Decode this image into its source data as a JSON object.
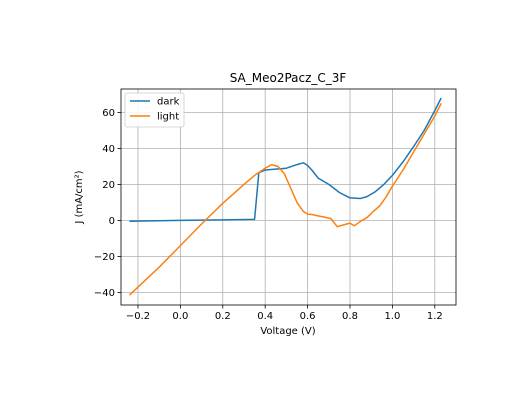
{
  "chart_data": {
    "type": "line",
    "title": "SA_Meo2Pacz_C_3F",
    "xlabel": "Voltage (V)",
    "ylabel": "J (mA/cm²)",
    "xlim": [
      -0.28,
      1.3
    ],
    "ylim": [
      -47,
      73
    ],
    "xticks": [
      -0.2,
      0.0,
      0.2,
      0.4,
      0.6,
      0.8,
      1.0,
      1.2
    ],
    "xtick_labels": [
      "−0.2",
      "0.0",
      "0.2",
      "0.4",
      "0.6",
      "0.8",
      "1.0",
      "1.2"
    ],
    "yticks": [
      -40,
      -20,
      0,
      20,
      40,
      60
    ],
    "ytick_labels": [
      "−40",
      "−20",
      "0",
      "20",
      "40",
      "60"
    ],
    "grid": true,
    "legend": "top-left",
    "series": [
      {
        "name": "dark",
        "color": "#1f77b4",
        "x": [
          -0.24,
          0.0,
          0.2,
          0.35,
          0.37,
          0.4,
          0.45,
          0.5,
          0.55,
          0.58,
          0.6,
          0.62,
          0.65,
          0.7,
          0.75,
          0.8,
          0.85,
          0.88,
          0.92,
          0.96,
          1.0,
          1.05,
          1.1,
          1.15,
          1.2,
          1.23
        ],
        "y": [
          -0.5,
          0.0,
          0.3,
          0.6,
          26.5,
          28.0,
          28.5,
          29.0,
          31.0,
          32.0,
          30.5,
          28.0,
          23.5,
          20.0,
          15.5,
          12.5,
          12.2,
          13.2,
          16.0,
          20.0,
          25.0,
          32.5,
          41.0,
          50.0,
          61.0,
          68.0
        ]
      },
      {
        "name": "light",
        "color": "#ff7f0e",
        "x": [
          -0.24,
          -0.1,
          0.0,
          0.1,
          0.2,
          0.3,
          0.35,
          0.4,
          0.43,
          0.46,
          0.49,
          0.52,
          0.55,
          0.58,
          0.6,
          0.62,
          0.65,
          0.68,
          0.71,
          0.74,
          0.77,
          0.8,
          0.82,
          0.85,
          0.88,
          0.91,
          0.94,
          0.97,
          1.0,
          1.05,
          1.1,
          1.15,
          1.2,
          1.23
        ],
        "y": [
          -41.5,
          -26.0,
          -14.0,
          -2.0,
          9.5,
          20.0,
          25.0,
          29.0,
          31.0,
          30.0,
          26.0,
          18.0,
          10.0,
          5.0,
          3.5,
          3.3,
          2.5,
          1.8,
          1.0,
          -3.5,
          -2.5,
          -1.5,
          -3.0,
          -0.5,
          1.5,
          5.0,
          8.0,
          13.0,
          19.0,
          28.0,
          38.0,
          48.0,
          58.0,
          65.0
        ]
      }
    ]
  }
}
